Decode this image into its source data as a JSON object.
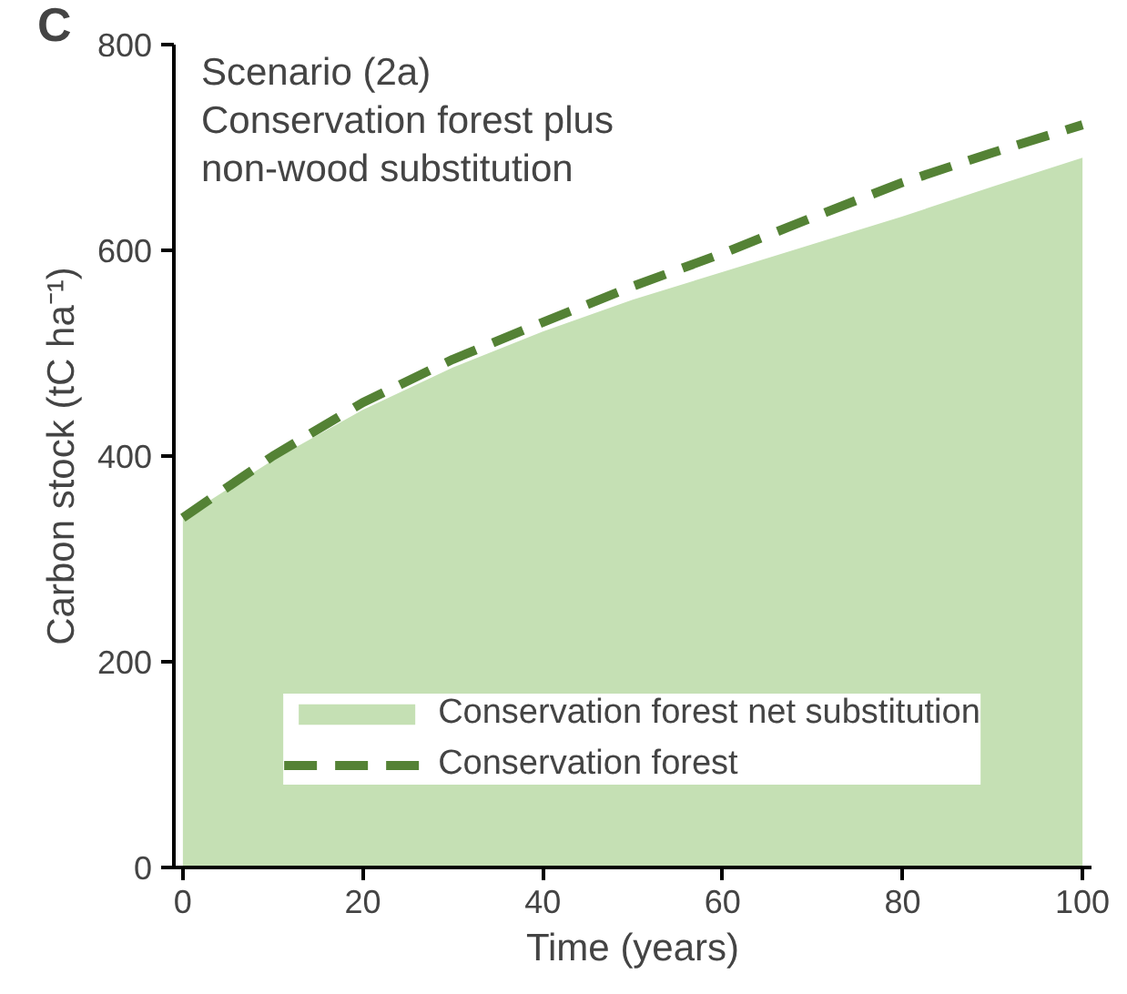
{
  "chart_data": {
    "type": "area",
    "title": "Scenario (2a)",
    "subtitle": "Conservation forest plus non-wood substitution",
    "annotations": [
      "C"
    ],
    "xlabel": "Time (years)",
    "ylabel": "Carbon stock (tC ha⁻¹)",
    "x": [
      0,
      10,
      20,
      30,
      40,
      50,
      60,
      70,
      80,
      90,
      100
    ],
    "series": [
      {
        "name": "Conservation forest net substitution",
        "color": "#c5e0b4",
        "values": [
          340,
          396,
          445,
          486,
          521,
          552,
          579,
          606,
          633,
          662,
          690
        ]
      },
      {
        "name": "Conservation forest",
        "type": "line",
        "line_style": "dashed",
        "color": "#548235",
        "values": [
          340,
          400,
          452,
          494,
          530,
          565,
          597,
          632,
          666,
          695,
          722
        ]
      }
    ],
    "xlim": [
      -1,
      101
    ],
    "ylim": [
      0,
      800
    ],
    "xticks": [
      0,
      20,
      40,
      60,
      80,
      100
    ],
    "yticks": [
      0,
      200,
      400,
      600,
      800
    ],
    "grid": false,
    "legend": "bottom"
  }
}
